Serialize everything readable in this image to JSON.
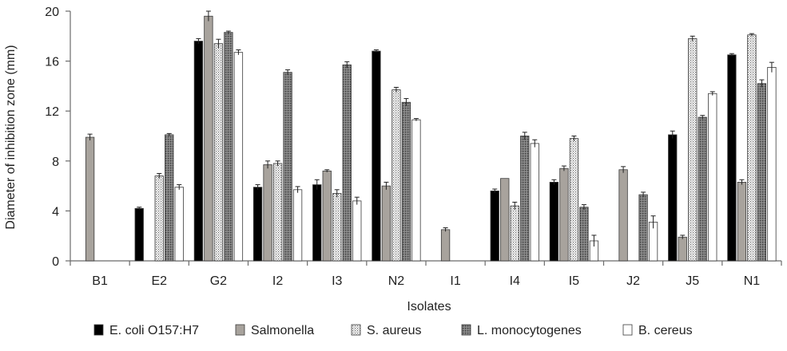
{
  "chart_data": {
    "type": "bar",
    "xlabel": "Isolates",
    "ylabel": "Diameter of inhibition zone (mm)",
    "ylim": [
      0,
      20
    ],
    "yticks": [
      0,
      4,
      8,
      12,
      16,
      20
    ],
    "grid": false,
    "legend_position": "bottom",
    "categories": [
      "B1",
      "E2",
      "G2",
      "I2",
      "I3",
      "N2",
      "I1",
      "I4",
      "I5",
      "J2",
      "J5",
      "N1"
    ],
    "series": [
      {
        "name": "E. coli O157:H7",
        "color": "#000000",
        "pattern": "solid-black",
        "values": [
          0,
          4.2,
          17.6,
          5.9,
          6.1,
          16.8,
          0,
          5.6,
          6.3,
          0,
          10.1,
          16.5
        ],
        "errors": [
          0,
          0.1,
          0.2,
          0.2,
          0.4,
          0.1,
          0,
          0.15,
          0.2,
          0,
          0.3,
          0.1
        ]
      },
      {
        "name": "Salmonella",
        "color": "#a8a39d",
        "pattern": "solid-gray",
        "values": [
          9.9,
          0,
          19.6,
          7.7,
          7.2,
          6.0,
          2.5,
          6.6,
          7.4,
          7.3,
          1.9,
          6.3
        ],
        "errors": [
          0.25,
          0,
          0.4,
          0.3,
          0.1,
          0.3,
          0.15,
          0,
          0.2,
          0.25,
          0.15,
          0.2
        ]
      },
      {
        "name": "S. aureus",
        "color": "#ffffff",
        "pattern": "dotted",
        "values": [
          0,
          6.8,
          17.4,
          7.8,
          5.4,
          13.7,
          0,
          4.4,
          9.8,
          0,
          17.8,
          18.1
        ],
        "errors": [
          0,
          0.2,
          0.35,
          0.2,
          0.3,
          0.2,
          0,
          0.3,
          0.2,
          0,
          0.2,
          0.1
        ]
      },
      {
        "name": "L. monocytogenes",
        "color": "#8c8c8c",
        "pattern": "stippled-dark",
        "values": [
          0,
          10.1,
          18.3,
          15.1,
          15.7,
          12.7,
          0,
          10.0,
          4.3,
          5.3,
          11.5,
          14.2
        ],
        "errors": [
          0,
          0.1,
          0.1,
          0.2,
          0.25,
          0.3,
          0,
          0.3,
          0.2,
          0.2,
          0.15,
          0.3
        ]
      },
      {
        "name": "B. cereus",
        "color": "#ffffff",
        "pattern": "white",
        "values": [
          0,
          5.9,
          16.7,
          5.7,
          4.8,
          11.3,
          0,
          9.4,
          1.6,
          3.1,
          13.4,
          15.5
        ],
        "errors": [
          0,
          0.2,
          0.2,
          0.25,
          0.3,
          0.1,
          0,
          0.3,
          0.45,
          0.5,
          0.15,
          0.4
        ]
      }
    ]
  }
}
